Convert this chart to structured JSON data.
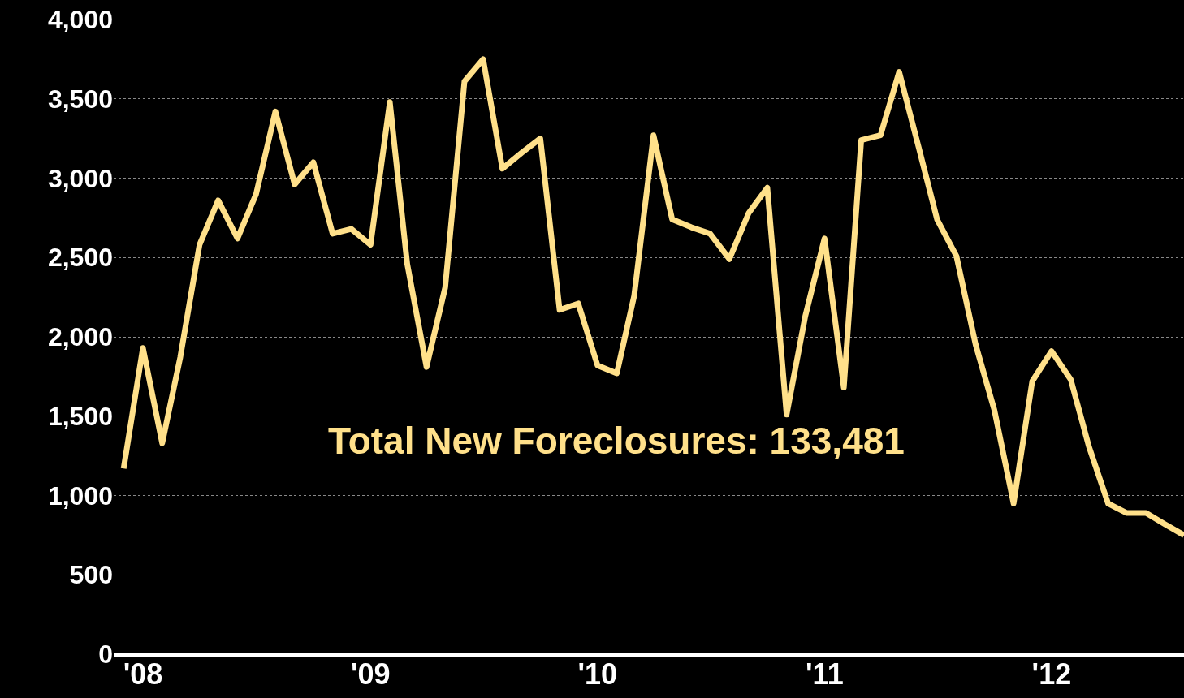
{
  "chart_data": {
    "type": "line",
    "x": [
      "2007-12",
      "2008-01",
      "2008-02",
      "2008-03",
      "2008-04",
      "2008-05",
      "2008-06",
      "2008-07",
      "2008-08",
      "2008-09",
      "2008-10",
      "2008-11",
      "2008-12",
      "2009-01",
      "2009-02",
      "2009-03",
      "2009-04",
      "2009-05",
      "2009-06",
      "2009-07",
      "2009-08",
      "2009-09",
      "2009-10",
      "2009-11",
      "2009-12",
      "2010-01",
      "2010-02",
      "2010-03",
      "2010-04",
      "2010-05",
      "2010-06",
      "2010-07",
      "2010-08",
      "2010-09",
      "2010-10",
      "2010-11",
      "2010-12",
      "2011-01",
      "2011-02",
      "2011-03",
      "2011-04",
      "2011-05",
      "2011-06",
      "2011-07",
      "2011-08",
      "2011-09",
      "2011-10",
      "2011-11",
      "2011-12",
      "2012-01",
      "2012-02",
      "2012-03",
      "2012-04",
      "2012-05",
      "2012-06",
      "2012-07",
      "2012-08"
    ],
    "series": [
      {
        "color": "#ffe08a",
        "values": [
          1170,
          1930,
          1330,
          1870,
          2580,
          2860,
          2620,
          2900,
          3420,
          2960,
          3100,
          2650,
          2680,
          2580,
          3480,
          2460,
          1810,
          2310,
          3610,
          3750,
          3060,
          3160,
          3250,
          2170,
          2210,
          1820,
          1770,
          2260,
          3270,
          2740,
          2690,
          2650,
          2490,
          2780,
          2940,
          1510,
          2130,
          2620,
          1680,
          3240,
          3270,
          3670,
          3200,
          2740,
          2510,
          1950,
          1540,
          950,
          1720,
          1910,
          1730,
          1310,
          950,
          890,
          890,
          820,
          750
        ]
      }
    ],
    "xlim": [
      "2007-11-15",
      "2012-08-01"
    ],
    "xticks": [
      {
        "value": "2008-01",
        "label": "'08"
      },
      {
        "value": "2009-01",
        "label": "'09"
      },
      {
        "value": "2010-01",
        "label": "'10"
      },
      {
        "value": "2011-01",
        "label": "'11"
      },
      {
        "value": "2012-01",
        "label": "'12"
      }
    ],
    "ylim": [
      0,
      4000
    ],
    "yticks": [
      {
        "value": 0,
        "label": "0"
      },
      {
        "value": 500,
        "label": "500"
      },
      {
        "value": 1000,
        "label": "1,000"
      },
      {
        "value": 1500,
        "label": "1,500"
      },
      {
        "value": 2000,
        "label": "2,000"
      },
      {
        "value": 2500,
        "label": "2,500"
      },
      {
        "value": 3000,
        "label": "3,000"
      },
      {
        "value": 3500,
        "label": "3,500"
      },
      {
        "value": 4000,
        "label": "4,000"
      }
    ],
    "grid": "y",
    "marker": "none",
    "line_style": "solid",
    "annotations": [
      "Total New Foreclosures: 133,481"
    ]
  }
}
